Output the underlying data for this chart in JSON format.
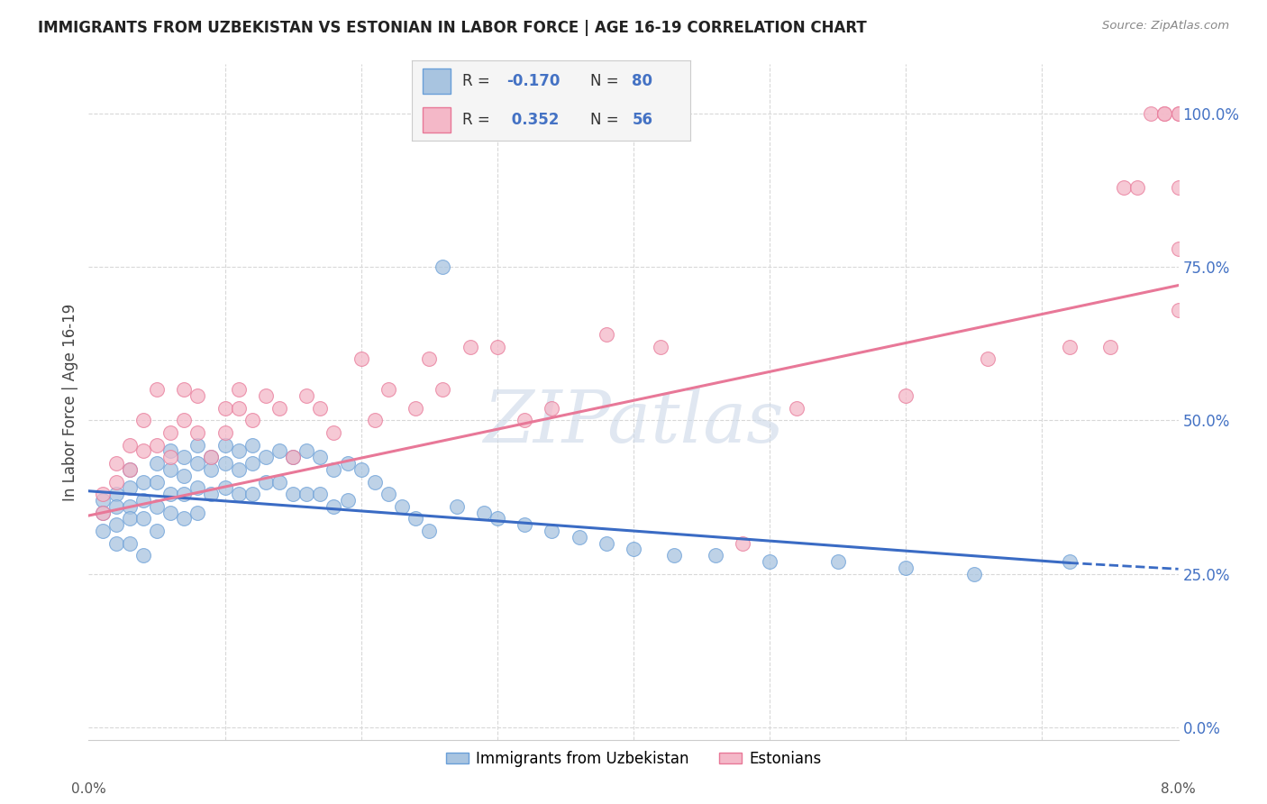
{
  "title": "IMMIGRANTS FROM UZBEKISTAN VS ESTONIAN IN LABOR FORCE | AGE 16-19 CORRELATION CHART",
  "source": "Source: ZipAtlas.com",
  "ylabel": "In Labor Force | Age 16-19",
  "yticks": [
    "0.0%",
    "25.0%",
    "50.0%",
    "75.0%",
    "100.0%"
  ],
  "ytick_vals": [
    0.0,
    0.25,
    0.5,
    0.75,
    1.0
  ],
  "xmin": 0.0,
  "xmax": 0.08,
  "ymin": -0.02,
  "ymax": 1.08,
  "legend_label1": "Immigrants from Uzbekistan",
  "legend_label2": "Estonians",
  "color_blue": "#a8c4e0",
  "color_pink": "#f4b8c8",
  "color_blue_edge": "#6a9fd8",
  "color_pink_edge": "#e87898",
  "color_blue_line": "#3a6bc4",
  "color_pink_line": "#e87898",
  "color_blue_text": "#4472c4",
  "watermark_color": "#ccd8e8",
  "grid_color": "#d8d8d8",
  "bg_color": "#ffffff",
  "blue_line_x0": 0.0,
  "blue_line_x1": 0.072,
  "blue_line_y0": 0.385,
  "blue_line_y1": 0.268,
  "blue_line_dash_x0": 0.072,
  "blue_line_dash_x1": 0.08,
  "blue_line_dash_y0": 0.268,
  "blue_line_dash_y1": 0.258,
  "pink_line_x0": 0.0,
  "pink_line_x1": 0.08,
  "pink_line_y0": 0.345,
  "pink_line_y1": 0.72,
  "blue_x": [
    0.001,
    0.001,
    0.001,
    0.002,
    0.002,
    0.002,
    0.002,
    0.003,
    0.003,
    0.003,
    0.003,
    0.003,
    0.004,
    0.004,
    0.004,
    0.004,
    0.005,
    0.005,
    0.005,
    0.005,
    0.006,
    0.006,
    0.006,
    0.006,
    0.007,
    0.007,
    0.007,
    0.007,
    0.008,
    0.008,
    0.008,
    0.008,
    0.009,
    0.009,
    0.009,
    0.01,
    0.01,
    0.01,
    0.011,
    0.011,
    0.011,
    0.012,
    0.012,
    0.012,
    0.013,
    0.013,
    0.014,
    0.014,
    0.015,
    0.015,
    0.016,
    0.016,
    0.017,
    0.017,
    0.018,
    0.018,
    0.019,
    0.019,
    0.02,
    0.021,
    0.022,
    0.023,
    0.024,
    0.025,
    0.026,
    0.027,
    0.029,
    0.03,
    0.032,
    0.034,
    0.036,
    0.038,
    0.04,
    0.043,
    0.046,
    0.05,
    0.055,
    0.06,
    0.065,
    0.072
  ],
  "blue_y": [
    0.37,
    0.35,
    0.32,
    0.38,
    0.36,
    0.33,
    0.3,
    0.42,
    0.39,
    0.36,
    0.34,
    0.3,
    0.4,
    0.37,
    0.34,
    0.28,
    0.43,
    0.4,
    0.36,
    0.32,
    0.45,
    0.42,
    0.38,
    0.35,
    0.44,
    0.41,
    0.38,
    0.34,
    0.46,
    0.43,
    0.39,
    0.35,
    0.44,
    0.42,
    0.38,
    0.46,
    0.43,
    0.39,
    0.45,
    0.42,
    0.38,
    0.46,
    0.43,
    0.38,
    0.44,
    0.4,
    0.45,
    0.4,
    0.44,
    0.38,
    0.45,
    0.38,
    0.44,
    0.38,
    0.42,
    0.36,
    0.43,
    0.37,
    0.42,
    0.4,
    0.38,
    0.36,
    0.34,
    0.32,
    0.75,
    0.36,
    0.35,
    0.34,
    0.33,
    0.32,
    0.31,
    0.3,
    0.29,
    0.28,
    0.28,
    0.27,
    0.27,
    0.26,
    0.25,
    0.27
  ],
  "pink_x": [
    0.001,
    0.001,
    0.002,
    0.002,
    0.003,
    0.003,
    0.004,
    0.004,
    0.005,
    0.005,
    0.006,
    0.006,
    0.007,
    0.007,
    0.008,
    0.008,
    0.009,
    0.01,
    0.01,
    0.011,
    0.011,
    0.012,
    0.013,
    0.014,
    0.015,
    0.016,
    0.017,
    0.018,
    0.02,
    0.021,
    0.022,
    0.024,
    0.025,
    0.026,
    0.028,
    0.03,
    0.032,
    0.034,
    0.038,
    0.042,
    0.048,
    0.052,
    0.06,
    0.066,
    0.072,
    0.075,
    0.076,
    0.077,
    0.078,
    0.079,
    0.079,
    0.08,
    0.08,
    0.08,
    0.08,
    0.08
  ],
  "pink_y": [
    0.38,
    0.35,
    0.43,
    0.4,
    0.46,
    0.42,
    0.5,
    0.45,
    0.46,
    0.55,
    0.48,
    0.44,
    0.55,
    0.5,
    0.48,
    0.54,
    0.44,
    0.52,
    0.48,
    0.55,
    0.52,
    0.5,
    0.54,
    0.52,
    0.44,
    0.54,
    0.52,
    0.48,
    0.6,
    0.5,
    0.55,
    0.52,
    0.6,
    0.55,
    0.62,
    0.62,
    0.5,
    0.52,
    0.64,
    0.62,
    0.3,
    0.52,
    0.54,
    0.6,
    0.62,
    0.62,
    0.88,
    0.88,
    1.0,
    1.0,
    1.0,
    0.88,
    0.78,
    0.68,
    1.0,
    1.0
  ]
}
